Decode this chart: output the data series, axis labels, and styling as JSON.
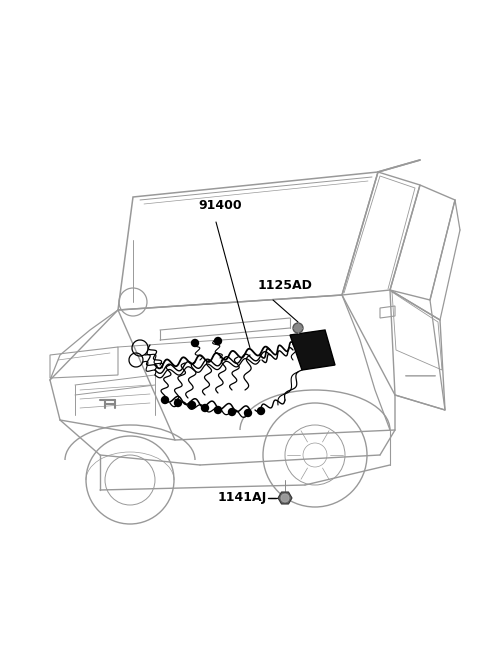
{
  "background_color": "#ffffff",
  "line_color": "#aaaaaa",
  "dark_line": "#888888",
  "black": "#000000",
  "label_91400": "91400",
  "label_1125AD": "1125AD",
  "label_1141AJ": "1141AJ",
  "fig_width": 4.8,
  "fig_height": 6.55,
  "dpi": 100,
  "car_line_lw": 1.0,
  "car_line_color": "#999999"
}
